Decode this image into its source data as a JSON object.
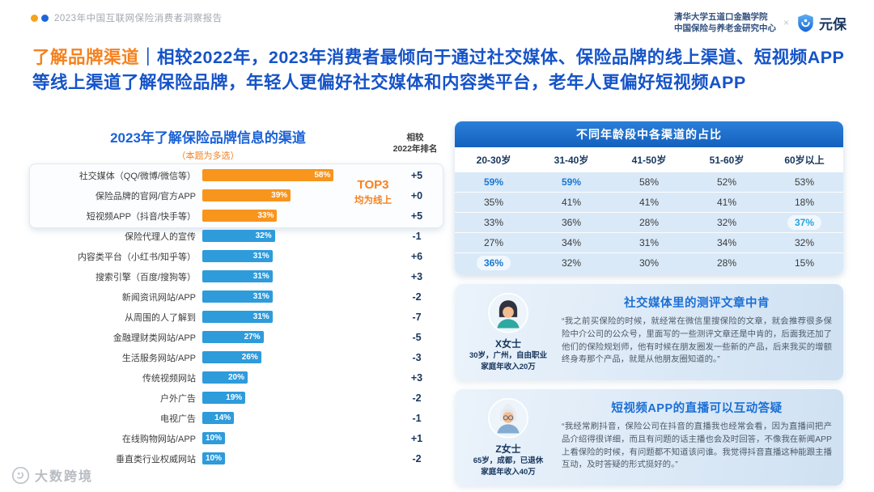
{
  "header": {
    "report_title": "2023年中国互联网保险消费者洞察报告",
    "affiliation_line1": "清华大学五道口金融学院",
    "affiliation_line2": "中国保险与养老金研究中心",
    "cross_separator": "×",
    "brand_name": "元保"
  },
  "headline": {
    "highlight": "了解品牌渠道",
    "separator": "｜",
    "body": "相较2022年，2023年消费者最倾向于通过社交媒体、保险品牌的线上渠道、短视频APP等线上渠道了解保险品牌，年轻人更偏好社交媒体和内容类平台，老年人更偏好短视频APP",
    "highlight_color": "#F5821F",
    "body_color": "#1553C8"
  },
  "chart_data": [
    {
      "type": "bar",
      "title": "2023年了解保险品牌信息的渠道",
      "subtitle": "（本题为多选）",
      "rank_header_line1": "相较",
      "rank_header_line2": "2022年排名",
      "top3_note_line1": "TOP3",
      "top3_note_line2": "均为线上",
      "categories": [
        "社交媒体（QQ/微博/微信等）",
        "保险品牌的官网/官方APP",
        "短视频APP（抖音/快手等）",
        "保险代理人的宣传",
        "内容类平台（小红书/知乎等）",
        "搜索引擎（百度/搜狗等）",
        "新闻资讯网站/APP",
        "从周围的人了解到",
        "金融理财类网站/APP",
        "生活服务网站/APP",
        "传统视频网站",
        "户外广告",
        "电视广告",
        "在线购物网站/APP",
        "垂直类行业权威网站"
      ],
      "values": [
        58,
        39,
        33,
        32,
        31,
        31,
        31,
        31,
        27,
        26,
        20,
        19,
        14,
        10,
        10
      ],
      "unit": "%",
      "rank_change": [
        "+5",
        "+0",
        "+5",
        "-1",
        "+6",
        "+3",
        "-2",
        "-7",
        "-5",
        "-3",
        "+3",
        "-2",
        "-1",
        "+1",
        "-2"
      ],
      "xlim": [
        0,
        60
      ],
      "top3_bar_color": "#F8951D",
      "bar_color": "#2E9BDB"
    },
    {
      "type": "table",
      "title": "不同年龄段中各渠道的占比",
      "columns": [
        "20-30岁",
        "31-40岁",
        "41-50岁",
        "51-60岁",
        "60岁以上"
      ],
      "rows": [
        [
          "59%",
          "59%",
          "58%",
          "52%",
          "53%"
        ],
        [
          "35%",
          "41%",
          "41%",
          "41%",
          "18%"
        ],
        [
          "33%",
          "36%",
          "28%",
          "32%",
          "37%"
        ],
        [
          "27%",
          "34%",
          "31%",
          "34%",
          "32%"
        ],
        [
          "36%",
          "32%",
          "30%",
          "28%",
          "15%"
        ]
      ],
      "highlights": [
        {
          "row": 0,
          "col": 0,
          "style": "bold",
          "color": "#1877D3"
        },
        {
          "row": 0,
          "col": 1,
          "style": "bold",
          "color": "#1877D3"
        },
        {
          "row": 2,
          "col": 4,
          "style": "boxed",
          "color": "#24A3DE"
        },
        {
          "row": 4,
          "col": 0,
          "style": "boxed",
          "color": "#1877D3"
        }
      ],
      "header_color": "#1767C6",
      "body_background": "#D9E9F8"
    }
  ],
  "testimonials": [
    {
      "title": "社交媒体里的测评文章中肯",
      "person": "X女士",
      "detail_line1": "30岁，广州，自由职业",
      "detail_line2": "家庭年收入20万",
      "quote": "“我之前买保险的时候，就经常在微信里搜保险的文章，就会推荐很多保险中介公司的公众号，里面写的一些测评文章还是中肯的，后面我还加了他们的保险规划师，他有时候在朋友圈发一些新的产品，后来我买的增额终身寿那个产品，就是从他朋友圈知道的。”"
    },
    {
      "title": "短视频APP的直播可以互动答疑",
      "person": "Z女士",
      "detail_line1": "65岁，成都，已退休",
      "detail_line2": "家庭年收入40万",
      "quote": "“我经常刷抖音，保险公司在抖音的直播我也经常会看，因为直播间把产品介绍得很详细，而且有问题的话主播也会及时回答，不像我在新闻APP上看保险的时候，有问题都不知道该问谁。我觉得抖音直播这种能跟主播互动，及时答疑的形式挺好的。”"
    }
  ],
  "watermark": {
    "text": "大数跨境"
  }
}
